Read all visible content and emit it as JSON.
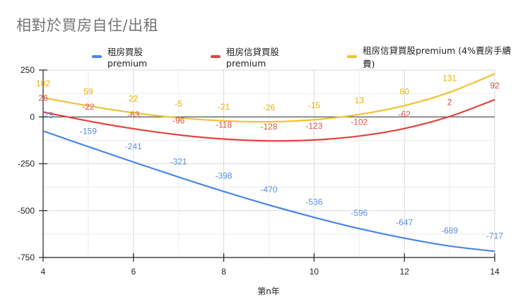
{
  "chart": {
    "title": "相對於買房自住/出租",
    "x_title": "第n年"
  },
  "legend": [
    {
      "label": "租房買股premium",
      "color": "#4a86e8"
    },
    {
      "label": "租房信貸買股premium",
      "color": "#e0443e"
    },
    {
      "label": "租房信貸買股premium (4%賣房手續費)",
      "color": "#f1c232"
    }
  ],
  "chart_data": {
    "type": "line",
    "title": "相對於買房自住/出租",
    "xlabel": "第n年",
    "ylabel": "",
    "x": [
      4,
      5,
      6,
      7,
      8,
      9,
      10,
      11,
      12,
      13,
      14
    ],
    "xlim": [
      4,
      14
    ],
    "ylim": [
      -750,
      250
    ],
    "x_ticks": [
      4,
      6,
      8,
      10,
      12,
      14
    ],
    "y_ticks": [
      250,
      0,
      -250,
      -500,
      -750
    ],
    "grid": true,
    "legend_position": "top",
    "series": [
      {
        "name": "租房買股premium",
        "color": "#4a86e8",
        "values": [
          -75,
          -159,
          -241,
          -321,
          -398,
          -470,
          -536,
          -596,
          -647,
          -689,
          -717
        ]
      },
      {
        "name": "租房信貸買股premium",
        "color": "#e0443e",
        "values": [
          26,
          -22,
          -63,
          -96,
          -118,
          -128,
          -123,
          -102,
          -62,
          2,
          92
        ]
      },
      {
        "name": "租房信貸買股premium (4%賣房手續費)",
        "color": "#f1c232",
        "values": [
          102,
          59,
          22,
          -5,
          -21,
          -26,
          -15,
          13,
          60,
          131,
          230
        ]
      }
    ],
    "data_labels": {
      "blue": [
        "-75",
        "-159",
        "-241",
        "-321",
        "-398",
        "-470",
        "-536",
        "-596",
        "-647",
        "-689",
        "-717"
      ],
      "red": [
        "26",
        "-22",
        "-63",
        "-96",
        "-118",
        "-128",
        "-123",
        "-102",
        "-62",
        "2",
        "92"
      ],
      "yellow": [
        "102",
        "59",
        "22",
        "-5",
        "-21",
        "-26",
        "-15",
        "13",
        "60",
        "131"
      ]
    }
  }
}
